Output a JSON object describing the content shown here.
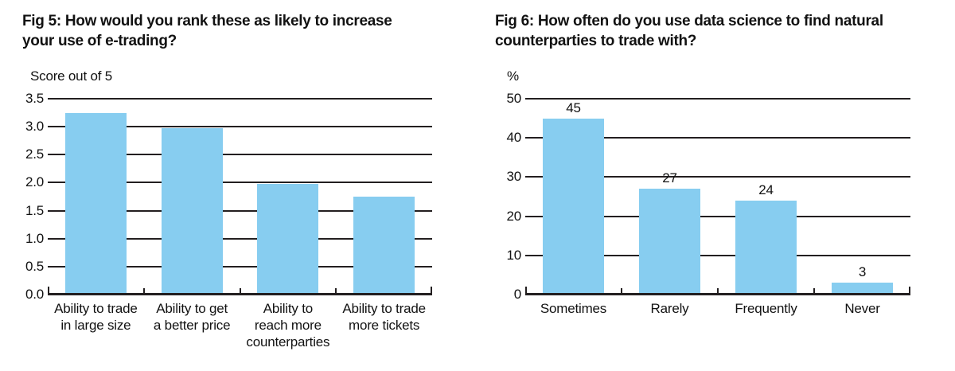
{
  "page": {
    "background": "#ffffff"
  },
  "colors": {
    "bar": "#87CDF0",
    "grid": "#231f20",
    "text": "#121212"
  },
  "chart_data": [
    {
      "type": "bar",
      "title": "Fig 5: How would you rank these as likely to increase your use of e-trading?",
      "title_lines": [
        "Fig 5: How would you rank these as likely to increase",
        "your use of e-trading?"
      ],
      "ylabel": "Score out of 5",
      "xlabel": "",
      "categories": [
        "Ability to trade in large size",
        "Ability to get a better price",
        "Ability to reach more counterparties",
        "Ability to trade more tickets"
      ],
      "category_lines": [
        [
          "Ability to trade",
          "in large size"
        ],
        [
          "Ability to get",
          "a better price"
        ],
        [
          "Ability to",
          "reach more",
          "counterparties"
        ],
        [
          "Ability to trade",
          "more tickets"
        ]
      ],
      "values": [
        3.25,
        3.0,
        2.0,
        1.75
      ],
      "ylim": [
        0,
        3.5
      ],
      "ytick_step": 0.5,
      "yticks": [
        "3.5",
        "3.0",
        "2.5",
        "2.0",
        "1.5",
        "1.0",
        "0.5",
        "0.0"
      ],
      "grid": true,
      "legend": false,
      "show_value_labels": false,
      "value_labels": []
    },
    {
      "type": "bar",
      "title": "Fig 6: How often do you use data science to find natural counterparties to trade with?",
      "title_lines": [
        "Fig 6: How often do you use data science to find natural",
        "counterparties to trade with?"
      ],
      "ylabel": "%",
      "xlabel": "",
      "categories": [
        "Sometimes",
        "Rarely",
        "Frequently",
        "Never"
      ],
      "category_lines": [
        [
          "Sometimes"
        ],
        [
          "Rarely"
        ],
        [
          "Frequently"
        ],
        [
          "Never"
        ]
      ],
      "values": [
        45,
        27,
        24,
        3
      ],
      "ylim": [
        0,
        50
      ],
      "ytick_step": 10,
      "yticks": [
        "50",
        "40",
        "30",
        "20",
        "10",
        "0"
      ],
      "grid": true,
      "legend": false,
      "show_value_labels": true,
      "value_labels": [
        "45",
        "27",
        "24",
        "3"
      ]
    }
  ]
}
